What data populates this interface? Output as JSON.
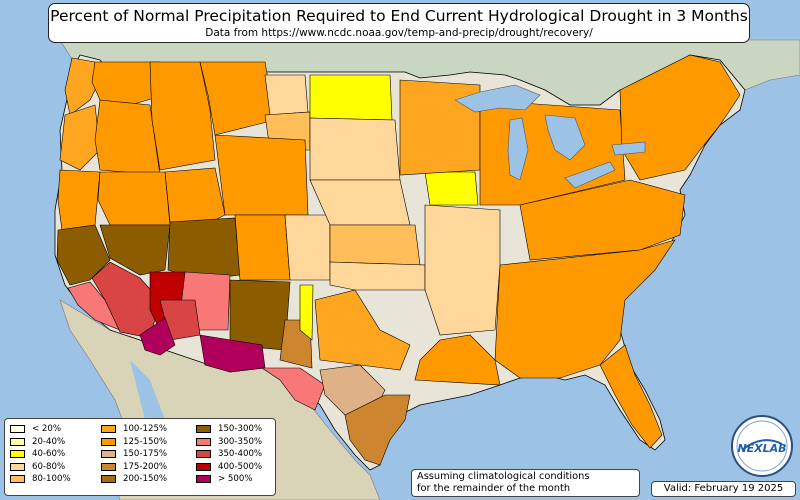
{
  "title": "Percent of Normal Precipitation Required to End Current Hydrological Drought in 3 Months",
  "subtitle": "Data from https://www.ncdc.noaa.gov/temp-and-precip/drought/recovery/",
  "note_line1": "Assuming climatological conditions",
  "note_line2": "for the remainder of the month",
  "valid": "Valid: February 19 2025",
  "logo_text": "NEXLAB",
  "colors": {
    "ocean": "#9cc3e6",
    "land": "#e8e5d8",
    "land_mexico": "#d9d3b8",
    "land_canada": "#c9d6c2",
    "lake": "#9cc3e6",
    "border": "#000000"
  },
  "legend": [
    {
      "label": "< 20%",
      "color": "#ffffe6"
    },
    {
      "label": "20-40%",
      "color": "#ffffa6"
    },
    {
      "label": "40-60%",
      "color": "#ffff00"
    },
    {
      "label": "60-80%",
      "color": "#ffd79a"
    },
    {
      "label": "80-100%",
      "color": "#ffbe5a"
    },
    {
      "label": "100-125%",
      "color": "#ffa621"
    },
    {
      "label": "125-150%",
      "color": "#ff9900"
    },
    {
      "label": "150-175%",
      "color": "#deb286"
    },
    {
      "label": "175-200%",
      "color": "#cd8530"
    },
    {
      "label": "200-150%",
      "color": "#a86a12"
    },
    {
      "label": "150-300%",
      "color": "#8b5d00"
    },
    {
      "label": "300-350%",
      "color": "#f87878"
    },
    {
      "label": "350-400%",
      "color": "#d94444"
    },
    {
      "label": "400-500%",
      "color": "#c00000"
    },
    {
      "label": "> 500%",
      "color": "#b0005c"
    }
  ],
  "regions": [
    {
      "name": "washington-coast",
      "bin": 5
    },
    {
      "name": "washington-central",
      "bin": 6
    },
    {
      "name": "oregon-coast",
      "bin": 5
    },
    {
      "name": "oregon-interior",
      "bin": 6
    },
    {
      "name": "northern-california",
      "bin": 6
    },
    {
      "name": "central-california",
      "bin": 10
    },
    {
      "name": "california-coast-south",
      "bin": 11
    },
    {
      "name": "southern-california",
      "bin": 12
    },
    {
      "name": "idaho",
      "bin": 6
    },
    {
      "name": "nevada-north",
      "bin": 6
    },
    {
      "name": "nevada-south",
      "bin": 10
    },
    {
      "name": "utah",
      "bin": 6
    },
    {
      "name": "utah-south",
      "bin": 10
    },
    {
      "name": "montana-west",
      "bin": 6
    },
    {
      "name": "montana-east",
      "bin": 3
    },
    {
      "name": "montana-northeast",
      "bin": 4
    },
    {
      "name": "north-dakota-west",
      "bin": 2
    },
    {
      "name": "wyoming",
      "bin": 6
    },
    {
      "name": "colorado-west",
      "bin": 6
    },
    {
      "name": "colorado-east",
      "bin": 3
    },
    {
      "name": "arizona-west",
      "bin": 13
    },
    {
      "name": "arizona-central",
      "bin": 11
    },
    {
      "name": "arizona-east",
      "bin": 12
    },
    {
      "name": "arizona-south",
      "bin": 14
    },
    {
      "name": "new-mexico-north",
      "bin": 10
    },
    {
      "name": "new-mexico-south",
      "bin": 14
    },
    {
      "name": "new-mexico-east",
      "bin": 8
    },
    {
      "name": "texas-panhandle-strip",
      "bin": 2
    },
    {
      "name": "texas-west",
      "bin": 11
    },
    {
      "name": "texas-central",
      "bin": 7
    },
    {
      "name": "texas-east-coast",
      "bin": 8
    },
    {
      "name": "texas-north",
      "bin": 5
    },
    {
      "name": "plains-north",
      "bin": 3
    },
    {
      "name": "nebraska",
      "bin": 3
    },
    {
      "name": "kansas",
      "bin": 4
    },
    {
      "name": "kansas-yellow",
      "bin": 2
    },
    {
      "name": "iowa-yellow",
      "bin": 2
    },
    {
      "name": "midwest",
      "bin": 5
    },
    {
      "name": "great-lakes-states",
      "bin": 6
    },
    {
      "name": "northeast",
      "bin": 6
    },
    {
      "name": "mid-atlantic",
      "bin": 6
    },
    {
      "name": "southeast",
      "bin": 6
    },
    {
      "name": "florida",
      "bin": 6
    },
    {
      "name": "gulf-coast",
      "bin": 6
    },
    {
      "name": "oklahoma",
      "bin": 3
    },
    {
      "name": "lower-mississippi",
      "bin": 3
    }
  ]
}
